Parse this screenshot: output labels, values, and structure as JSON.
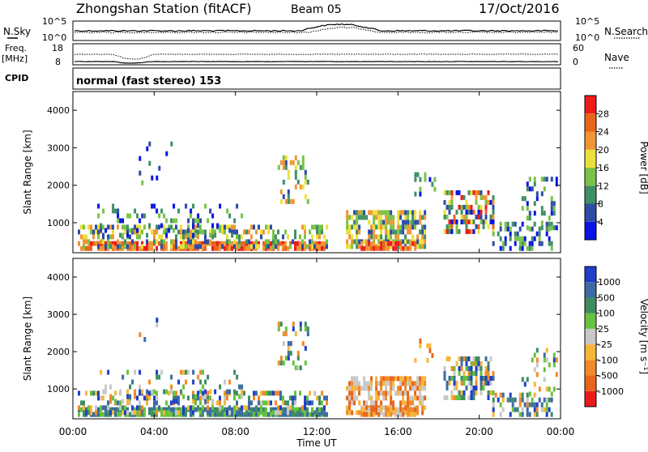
{
  "header": {
    "title": "Zhongshan Station (fitACF)",
    "beam": "Beam 05",
    "date": "17/Oct/2016"
  },
  "top_panels": {
    "nsky_label": "N.Sky",
    "nsearch_label": "N.Search",
    "nsky_ticks": [
      "10^5",
      "10^0"
    ],
    "nsearch_ticks": [
      "10^5",
      "10^0"
    ],
    "freq_label_1": "Freq.",
    "freq_label_2": "[MHz]",
    "freq_ticks": [
      "18",
      "8"
    ],
    "nave_label": "Nave",
    "nave_ticks": [
      "60",
      "0"
    ],
    "cpid_label": "CPID",
    "cpid_text": "normal (fast stereo) 153"
  },
  "chart_data": [
    {
      "type": "heatmap",
      "title": "",
      "xlabel": "Time UT",
      "ylabel": "Slant Range [km]",
      "xticks": [
        "00:00",
        "04:00",
        "08:00",
        "12:00",
        "16:00",
        "20:00",
        "00:00"
      ],
      "yticks": [
        "1000",
        "2000",
        "3000",
        "4000"
      ],
      "ylim": [
        200,
        4500
      ],
      "colorbar_label": "Power [dB]",
      "colorbar_ticks": [
        "4",
        "8",
        "12",
        "16",
        "20",
        "24",
        "28"
      ],
      "colorbar_colors": [
        "#0a14e6",
        "#2d4ca6",
        "#3f8f65",
        "#79c348",
        "#ece03a",
        "#f09634",
        "#e8651c",
        "#ef1a1a"
      ]
    },
    {
      "type": "heatmap",
      "title": "",
      "xlabel": "Time UT",
      "ylabel": "Slant Range [km]",
      "xticks": [
        "00:00",
        "04:00",
        "08:00",
        "12:00",
        "16:00",
        "20:00",
        "00:00"
      ],
      "yticks": [
        "1000",
        "2000",
        "3000",
        "4000"
      ],
      "ylim": [
        200,
        4500
      ],
      "colorbar_label": "Velocity [m s⁻¹]",
      "colorbar_ticks": [
        "1000",
        "500",
        "100",
        "25",
        "-25",
        "-100",
        "-500",
        "-1000"
      ],
      "colorbar_colors": [
        "#1f3fc8",
        "#3a6ca3",
        "#3f8c60",
        "#67c23f",
        "#c8c8c8",
        "#f5b63a",
        "#f08a2a",
        "#e8651c",
        "#ea1a1a"
      ]
    }
  ]
}
